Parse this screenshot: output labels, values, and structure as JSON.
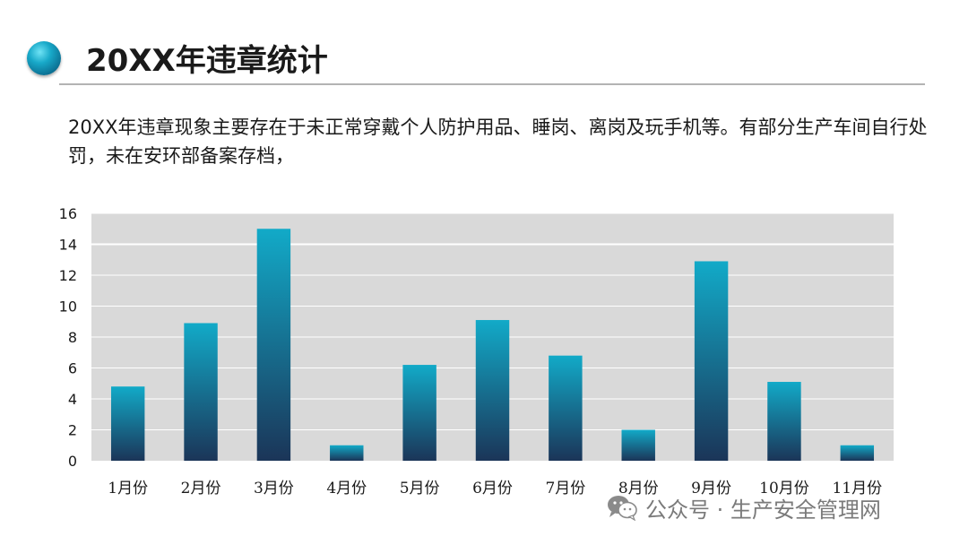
{
  "slide": {
    "title": "20XX年违章统计",
    "description": "20XX年违章现象主要存在于未正常穿戴个人防护用品、睡岗、离岗及玩手机等。有部分生产车间自行处罚，未在安环部备案存档，"
  },
  "watermark": {
    "text": "公众号 · 生产安全管理网",
    "icon": "wechat-icon"
  },
  "chart_data": {
    "type": "bar",
    "categories": [
      "1月份",
      "2月份",
      "3月份",
      "4月份",
      "5月份",
      "6月份",
      "7月份",
      "8月份",
      "9月份",
      "10月份",
      "11月份"
    ],
    "values": [
      4.8,
      8.9,
      15,
      1,
      6.2,
      9.1,
      6.8,
      2,
      12.9,
      5.1,
      1
    ],
    "title": "",
    "xlabel": "",
    "ylabel": "",
    "ylim": [
      0,
      16
    ],
    "yticks": [
      0,
      2,
      4,
      6,
      8,
      10,
      12,
      14,
      16
    ],
    "grid": true,
    "legend": "none",
    "colors": {
      "bar_top": "#12aac8",
      "bar_bottom": "#1b3558",
      "plot_bg": "#d9d9d9",
      "gridline": "#ffffff"
    }
  }
}
